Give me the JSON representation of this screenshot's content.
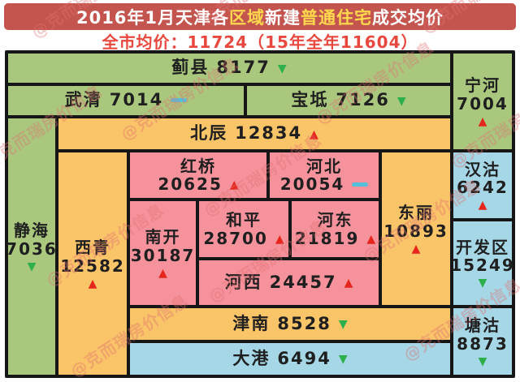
{
  "title": {
    "parts": [
      {
        "text": "2016年1月天津各",
        "color": "white"
      },
      {
        "text": "区域",
        "color": "yellow"
      },
      {
        "text": "新建",
        "color": "white"
      },
      {
        "text": "普通住宅",
        "color": "yellow"
      },
      {
        "text": "成交均价",
        "color": "white"
      }
    ]
  },
  "subtitle": "全市均价：11724（15年全年11604）",
  "watermark_text": "@克而瑞房价信息",
  "colors": {
    "title_bg": "#c4554e",
    "title_white": "#ffffff",
    "title_yellow": "#ffd84e",
    "subtitle_red": "#e8483e",
    "green": "#a9c87e",
    "orange": "#fac468",
    "pink": "#f5929c",
    "blue": "#a5d7e6",
    "arrow_up": "#e6261c",
    "arrow_down": "#2db04b",
    "flat": "#55c0dc",
    "text": "#1f1f1f",
    "watermark": "rgba(224,112,112,0.38)",
    "map_border": "#161616"
  },
  "regions": [
    {
      "id": "jixian",
      "name": "蓟县",
      "price": "8177",
      "trend": "down",
      "color": "green",
      "layout": "inline"
    },
    {
      "id": "wuqing",
      "name": "武清",
      "price": "7014",
      "trend": "flat",
      "color": "green",
      "layout": "inline"
    },
    {
      "id": "baodi",
      "name": "宝坻",
      "price": "7126",
      "trend": "down",
      "color": "green",
      "layout": "inline"
    },
    {
      "id": "ninghe",
      "name": "宁河",
      "price": "7004",
      "trend": "up",
      "color": "green",
      "layout": "three"
    },
    {
      "id": "beichen",
      "name": "北辰",
      "price": "12834",
      "trend": "up",
      "color": "orange",
      "layout": "inline"
    },
    {
      "id": "jinghai",
      "name": "静海",
      "price": "7036",
      "trend": "down",
      "color": "green",
      "layout": "three"
    },
    {
      "id": "xiqing",
      "name": "西青",
      "price": "12582",
      "trend": "up",
      "color": "orange",
      "layout": "three"
    },
    {
      "id": "hongqiao",
      "name": "红桥",
      "price": "20625",
      "trend": "up",
      "color": "pink",
      "layout": "two"
    },
    {
      "id": "hebei",
      "name": "河北",
      "price": "20054",
      "trend": "flat",
      "color": "pink",
      "layout": "two"
    },
    {
      "id": "dongli",
      "name": "东丽",
      "price": "10893",
      "trend": "up",
      "color": "orange",
      "layout": "three"
    },
    {
      "id": "hangu",
      "name": "汉沽",
      "price": "6242",
      "trend": "up",
      "color": "blue",
      "layout": "three"
    },
    {
      "id": "nankai",
      "name": "南开",
      "price": "30187",
      "trend": "up",
      "color": "pink",
      "layout": "three"
    },
    {
      "id": "heping",
      "name": "和平",
      "price": "28700",
      "trend": "up",
      "color": "pink",
      "layout": "two"
    },
    {
      "id": "hedong",
      "name": "河东",
      "price": "21819",
      "trend": "up",
      "color": "pink",
      "layout": "two"
    },
    {
      "id": "hexi",
      "name": "河西",
      "price": "24457",
      "trend": "up",
      "color": "pink",
      "layout": "inline"
    },
    {
      "id": "kaifaqu",
      "name": "开发区",
      "price": "15249",
      "trend": "down",
      "color": "blue",
      "layout": "three"
    },
    {
      "id": "jinnan",
      "name": "津南",
      "price": "8528",
      "trend": "down",
      "color": "orange",
      "layout": "inline"
    },
    {
      "id": "tanggu",
      "name": "塘沽",
      "price": "8873",
      "trend": "down",
      "color": "blue",
      "layout": "three"
    },
    {
      "id": "dagang",
      "name": "大港",
      "price": "6494",
      "trend": "down",
      "color": "blue",
      "layout": "inline"
    }
  ],
  "chart_data": {
    "type": "table",
    "title": "2016年1月天津各区域新建普通住宅成交均价",
    "subtitle": "全市均价：11724（15年全年11604）",
    "citywide_avg": 11724,
    "prev_year_avg": 11604,
    "columns": [
      "district",
      "avg_price",
      "trend"
    ],
    "rows": [
      [
        "蓟县",
        8177,
        "down"
      ],
      [
        "武清",
        7014,
        "flat"
      ],
      [
        "宝坻",
        7126,
        "down"
      ],
      [
        "宁河",
        7004,
        "up"
      ],
      [
        "北辰",
        12834,
        "up"
      ],
      [
        "静海",
        7036,
        "down"
      ],
      [
        "西青",
        12582,
        "up"
      ],
      [
        "红桥",
        20625,
        "up"
      ],
      [
        "河北",
        20054,
        "flat"
      ],
      [
        "东丽",
        10893,
        "up"
      ],
      [
        "汉沽",
        6242,
        "up"
      ],
      [
        "南开",
        30187,
        "up"
      ],
      [
        "和平",
        28700,
        "up"
      ],
      [
        "河东",
        21819,
        "up"
      ],
      [
        "河西",
        24457,
        "up"
      ],
      [
        "开发区",
        15249,
        "down"
      ],
      [
        "津南",
        8528,
        "down"
      ],
      [
        "塘沽",
        8873,
        "down"
      ],
      [
        "大港",
        6494,
        "down"
      ]
    ]
  }
}
